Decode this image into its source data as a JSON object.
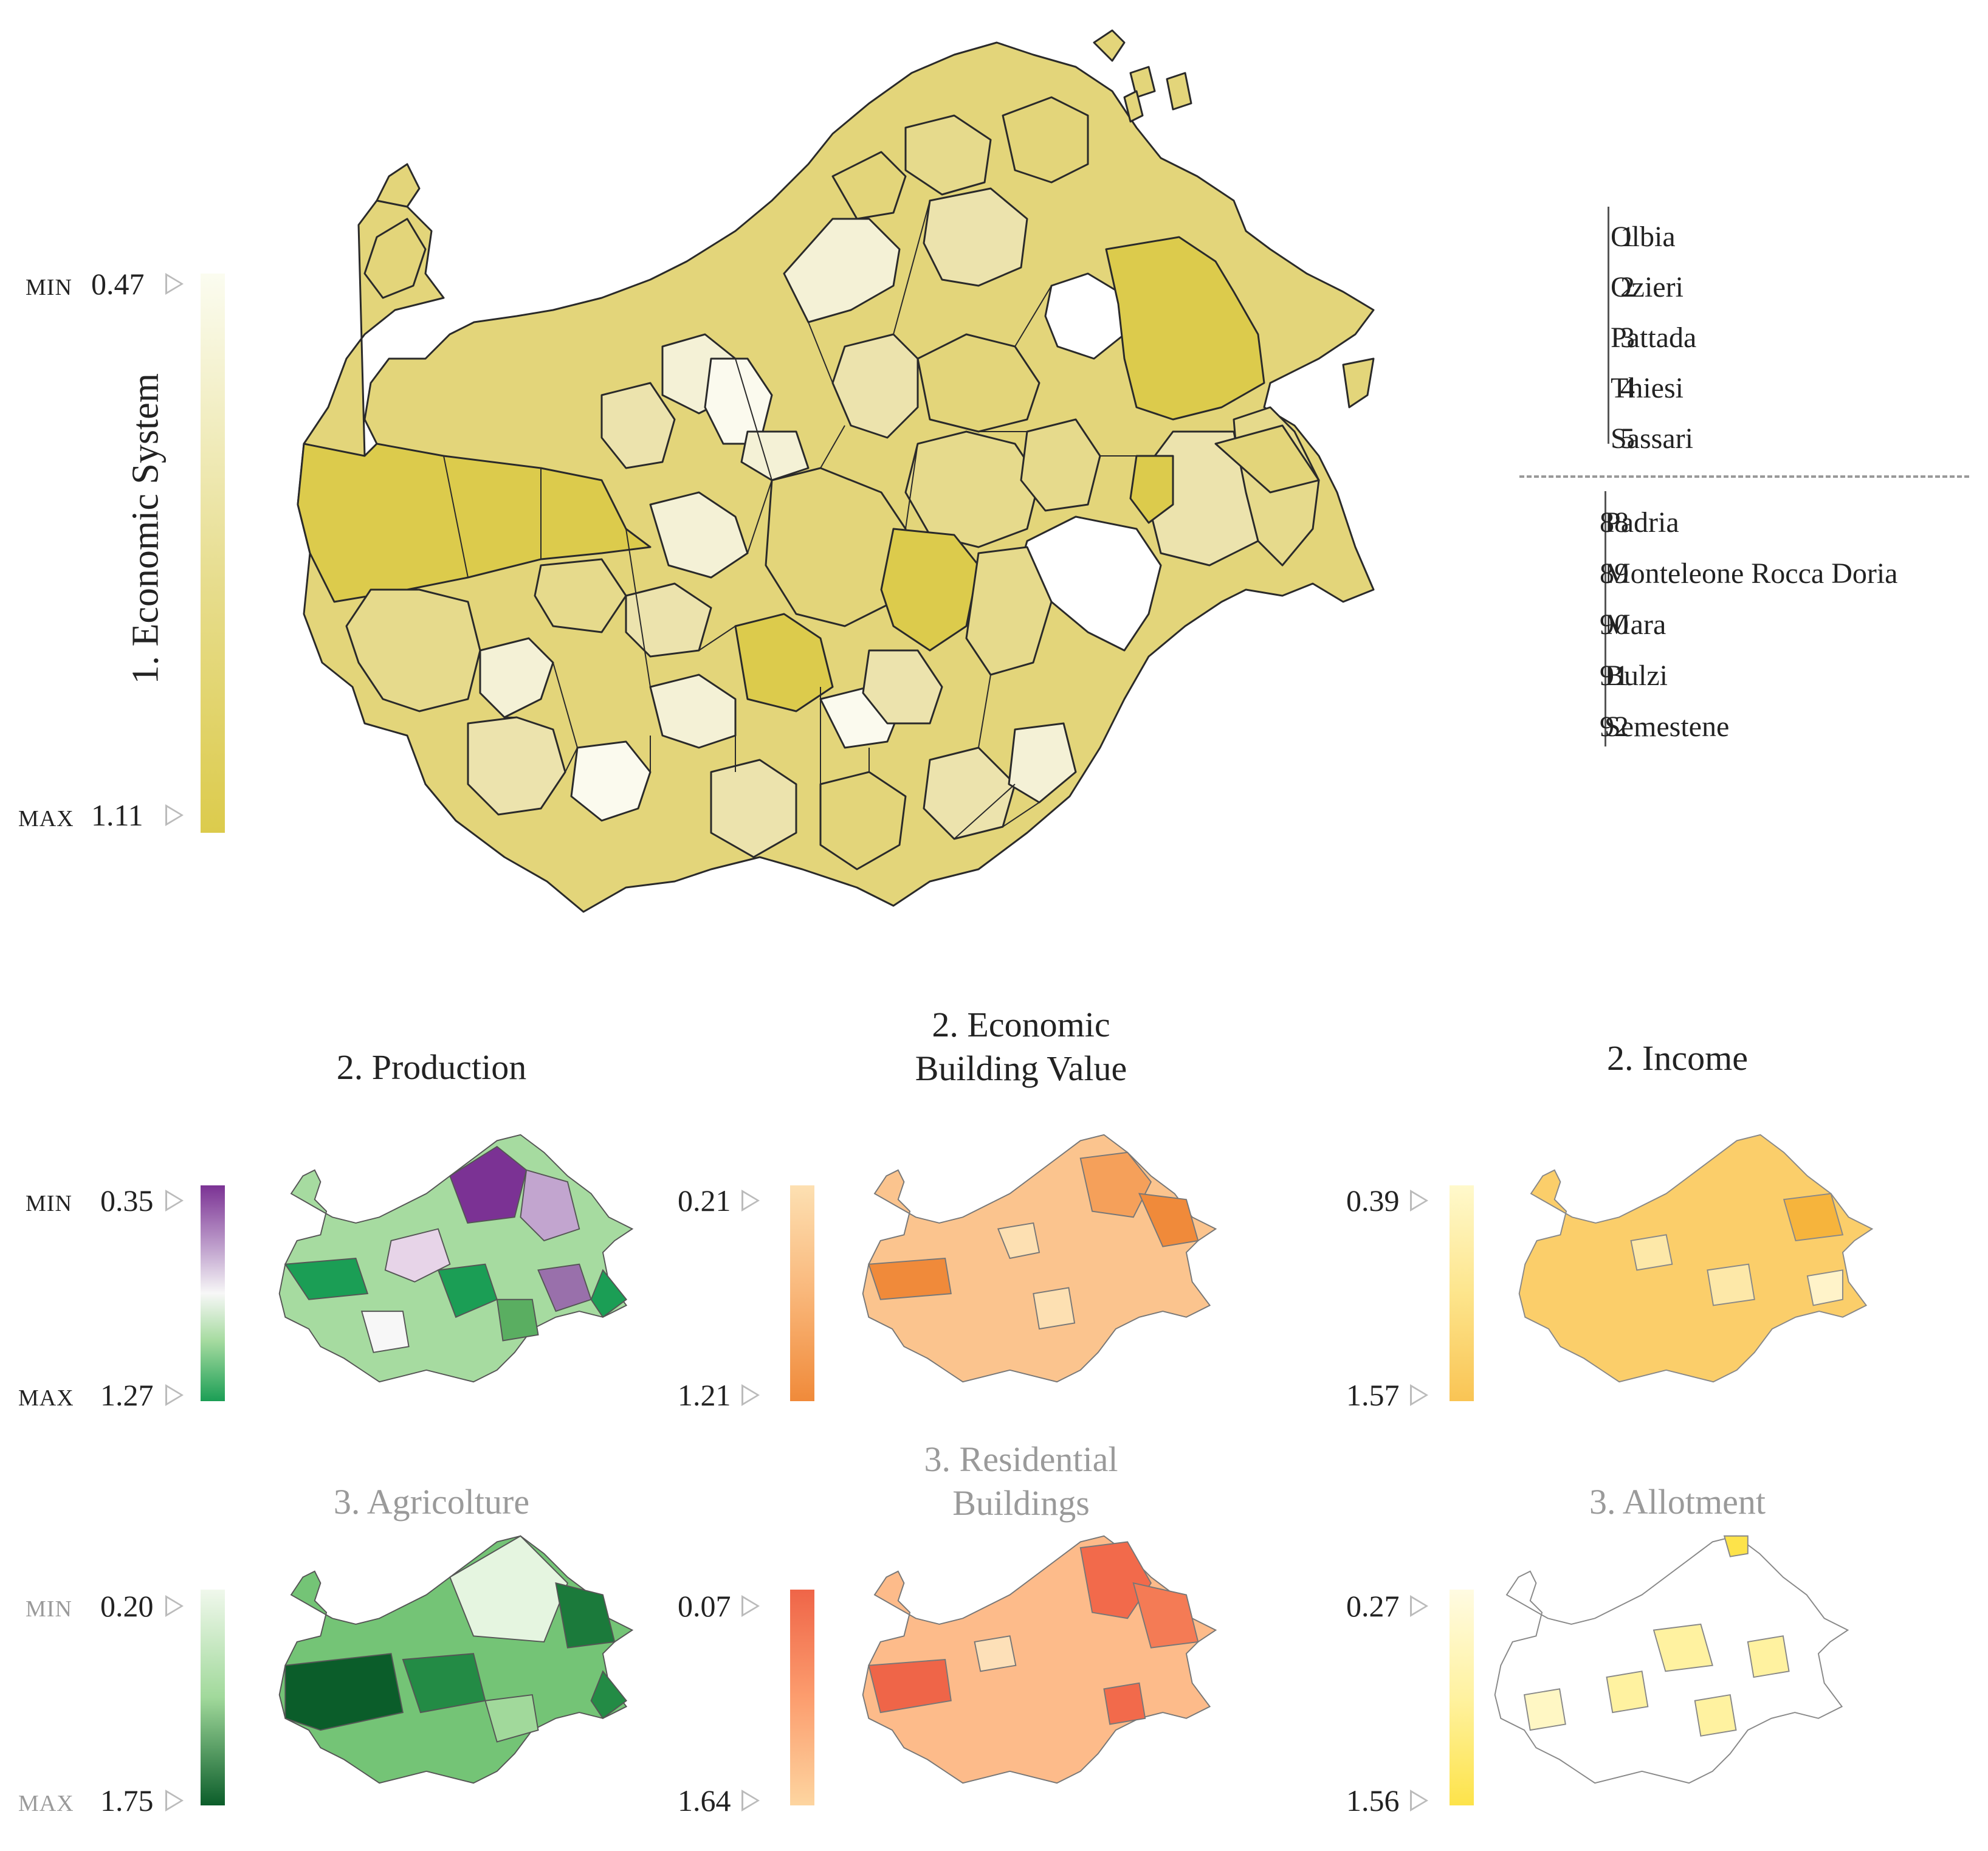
{
  "main_map": {
    "title": "1. Economic System",
    "min_label": "MIN",
    "min_value": "0.47",
    "max_label": "MAX",
    "max_value": "1.11",
    "colors": {
      "low": "#fbfcf0",
      "high": "#dccb4c"
    }
  },
  "legend": {
    "top": [
      {
        "rank": "1",
        "name": "Olbia"
      },
      {
        "rank": "2",
        "name": "Ozieri"
      },
      {
        "rank": "3",
        "name": "Pattada"
      },
      {
        "rank": "4",
        "name": "Thiesi"
      },
      {
        "rank": "5",
        "name": "Sassari"
      }
    ],
    "bottom": [
      {
        "rank": "88",
        "name": "Padria"
      },
      {
        "rank": "89",
        "name": "Monteleone Rocca Doria"
      },
      {
        "rank": "90",
        "name": "Mara"
      },
      {
        "rank": "91",
        "name": "Bulzi"
      },
      {
        "rank": "92",
        "name": "Semestene"
      }
    ]
  },
  "small_maps": {
    "production": {
      "title": "2. Production",
      "min_label": "MIN",
      "min_value": "0.35",
      "max_label": "MAX",
      "max_value": "1.27"
    },
    "building_value": {
      "title_line1": "2. Economic",
      "title_line2": "Building Value",
      "min_value": "0.21",
      "max_value": "1.21"
    },
    "income": {
      "title": "2. Income",
      "min_value": "0.39",
      "max_value": "1.57"
    },
    "agricolture": {
      "title": "3. Agricolture",
      "min_label": "MIN",
      "min_value": "0.20",
      "max_label": "MAX",
      "max_value": "1.75"
    },
    "residential": {
      "title_line1": "3. Residential",
      "title_line2": "Buildings",
      "min_value": "0.07",
      "max_value": "1.64"
    },
    "allotment": {
      "title": "3. Allotment",
      "min_value": "0.27",
      "max_value": "1.56"
    }
  }
}
